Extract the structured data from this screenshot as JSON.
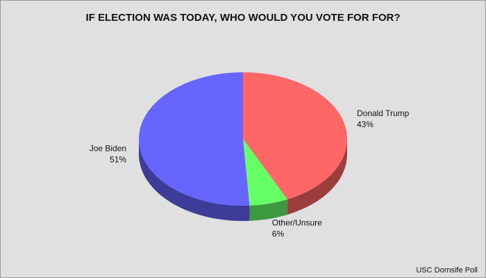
{
  "chart_data": {
    "type": "pie",
    "title": "IF ELECTION WAS TODAY, WHO WOULD YOU VOTE FOR FOR?",
    "categories": [
      "Donald Trump",
      "Other/Unsure",
      "Joe Biden"
    ],
    "values": [
      43,
      6,
      51
    ],
    "value_labels": [
      "43%",
      "6%",
      "51%"
    ],
    "colors": [
      "#ff6666",
      "#66ff66",
      "#6666ff"
    ],
    "source": "USC Dornsife Poll"
  }
}
